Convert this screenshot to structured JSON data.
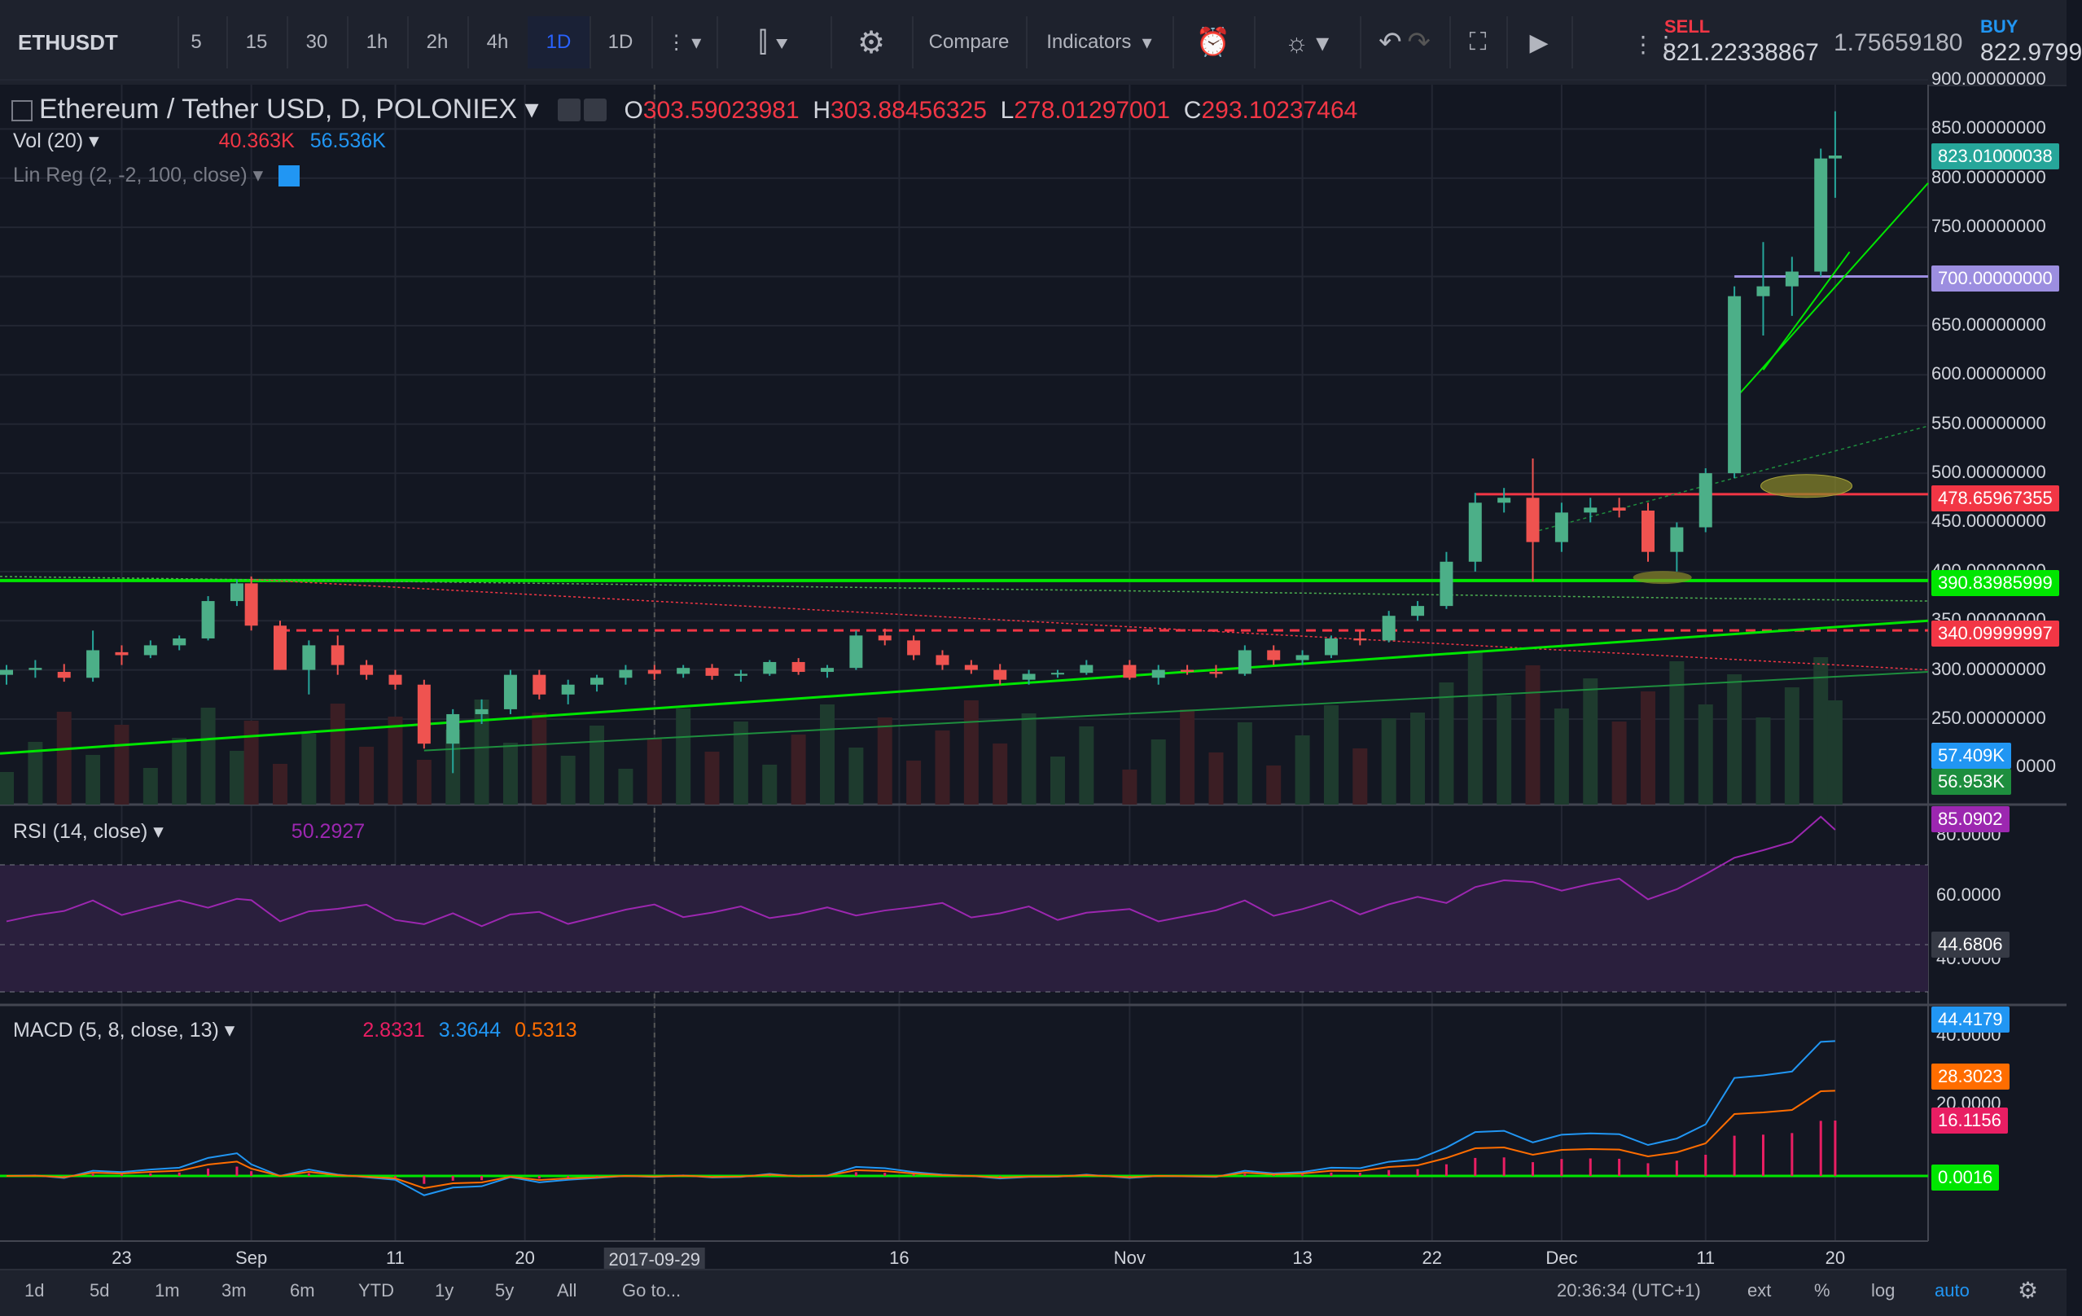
{
  "toolbar": {
    "symbol": "ETHUSDT",
    "intervals": [
      "5",
      "15",
      "30",
      "1h",
      "2h",
      "4h",
      "1D",
      "1D"
    ],
    "compare": "Compare",
    "indicators": "Indicators",
    "sell_label": "SELL",
    "sell_price": "821.22338867",
    "spread": "1.75659180",
    "buy_label": "BUY",
    "buy_price": "822.9799"
  },
  "legend": {
    "title": "Ethereum / Tether USD, D, POLONIEX",
    "o_label": "O",
    "o_value": "303.59023981",
    "h_label": "H",
    "h_value": "303.88456325",
    "l_label": "L",
    "l_value": "278.01297001",
    "c_label": "C",
    "c_value": "293.10237464",
    "vol_label": "Vol (20)",
    "vol_v1": "40.363K",
    "vol_v2": "56.536K",
    "linreg_label": "Lin Reg (2, -2, 100, close)",
    "rsi_label": "RSI (14, close)",
    "rsi_value": "50.2927",
    "macd_label": "MACD (5, 8, close, 13)",
    "macd_v1": "2.8331",
    "macd_v2": "3.3644",
    "macd_v3": "0.5313"
  },
  "price_axis": {
    "ticks": [
      "900.00000000",
      "850.00000000",
      "800.00000000",
      "750.00000000",
      "700.00000000",
      "650.00000000",
      "600.00000000",
      "550.00000000",
      "500.00000000",
      "450.00000000",
      "400.00000000",
      "350.00000000",
      "300.00000000",
      "250.00000000",
      "0000"
    ],
    "pills": [
      {
        "text": "823.01000038",
        "color": "#26a69a"
      },
      {
        "text": "700.00000000",
        "color": "#9c8ee0"
      },
      {
        "text": "478.65967355",
        "color": "#f23645"
      },
      {
        "text": "390.83985999",
        "color": "#00e600"
      },
      {
        "text": "340.09999997",
        "color": "#f23645"
      },
      {
        "text": "57.409K",
        "color": "#2196f3"
      },
      {
        "text": "56.953K",
        "color": "#1e8e3e"
      }
    ]
  },
  "rsi_axis": {
    "ticks": [
      "80.0000",
      "60.0000",
      "40.0000"
    ],
    "pills": [
      {
        "text": "85.0902",
        "color": "#9c27b0"
      },
      {
        "text": "44.6806",
        "color": "#363a45"
      }
    ]
  },
  "macd_axis": {
    "ticks": [
      "40.0000",
      "20.0000"
    ],
    "pills": [
      {
        "text": "44.4179",
        "color": "#2196f3"
      },
      {
        "text": "28.3023",
        "color": "#ff6d00"
      },
      {
        "text": "16.1156",
        "color": "#e91e63"
      },
      {
        "text": "0.0016",
        "color": "#00e600"
      }
    ]
  },
  "time_axis": {
    "labels": [
      "23",
      "Sep",
      "11",
      "20",
      "2017-09-29",
      "16",
      "Nov",
      "13",
      "22",
      "Dec",
      "11",
      "20"
    ]
  },
  "bottombar": {
    "ranges": [
      "1d",
      "5d",
      "1m",
      "3m",
      "6m",
      "YTD",
      "1y",
      "5y",
      "All",
      "Go to..."
    ],
    "clock": "20:36:34 (UTC+1)",
    "ext": "ext",
    "pct": "%",
    "log": "log",
    "auto": "auto"
  },
  "chart_data": {
    "type": "candlestick",
    "title": "Ethereum / Tether USD, D, POLONIEX",
    "x_range": [
      "2017-08-15",
      "2017-12-26"
    ],
    "ylim": [
      200,
      900
    ],
    "grid": true,
    "levels": [
      {
        "value": 700,
        "color": "#9c8ee0"
      },
      {
        "value": 478.66,
        "color": "#f23645"
      },
      {
        "value": 390.84,
        "color": "#00e600"
      },
      {
        "value": 340.1,
        "color": "#f23645",
        "style": "dashed"
      }
    ],
    "candles": [
      {
        "date": "2017-08-15",
        "open": 295,
        "high": 305,
        "low": 285,
        "close": 300
      },
      {
        "date": "2017-08-17",
        "open": 300,
        "high": 310,
        "low": 292,
        "close": 302
      },
      {
        "date": "2017-08-19",
        "open": 298,
        "high": 306,
        "low": 288,
        "close": 292
      },
      {
        "date": "2017-08-21",
        "open": 292,
        "high": 340,
        "low": 288,
        "close": 320
      },
      {
        "date": "2017-08-23",
        "open": 318,
        "high": 325,
        "low": 305,
        "close": 315
      },
      {
        "date": "2017-08-25",
        "open": 315,
        "high": 330,
        "low": 312,
        "close": 325
      },
      {
        "date": "2017-08-27",
        "open": 325,
        "high": 335,
        "low": 320,
        "close": 332
      },
      {
        "date": "2017-08-29",
        "open": 332,
        "high": 375,
        "low": 330,
        "close": 370
      },
      {
        "date": "2017-08-31",
        "open": 370,
        "high": 392,
        "low": 365,
        "close": 388
      },
      {
        "date": "2017-09-01",
        "open": 388,
        "high": 395,
        "low": 340,
        "close": 345
      },
      {
        "date": "2017-09-03",
        "open": 345,
        "high": 350,
        "low": 300,
        "close": 300
      },
      {
        "date": "2017-09-05",
        "open": 300,
        "high": 330,
        "low": 275,
        "close": 325
      },
      {
        "date": "2017-09-07",
        "open": 325,
        "high": 335,
        "low": 295,
        "close": 305
      },
      {
        "date": "2017-09-09",
        "open": 305,
        "high": 310,
        "low": 290,
        "close": 295
      },
      {
        "date": "2017-09-11",
        "open": 295,
        "high": 300,
        "low": 280,
        "close": 285
      },
      {
        "date": "2017-09-13",
        "open": 285,
        "high": 290,
        "low": 220,
        "close": 225
      },
      {
        "date": "2017-09-15",
        "open": 225,
        "high": 260,
        "low": 195,
        "close": 255
      },
      {
        "date": "2017-09-17",
        "open": 255,
        "high": 270,
        "low": 245,
        "close": 260
      },
      {
        "date": "2017-09-19",
        "open": 260,
        "high": 300,
        "low": 255,
        "close": 295
      },
      {
        "date": "2017-09-21",
        "open": 295,
        "high": 300,
        "low": 270,
        "close": 275
      },
      {
        "date": "2017-09-23",
        "open": 275,
        "high": 290,
        "low": 265,
        "close": 285
      },
      {
        "date": "2017-09-25",
        "open": 285,
        "high": 295,
        "low": 278,
        "close": 292
      },
      {
        "date": "2017-09-27",
        "open": 292,
        "high": 305,
        "low": 285,
        "close": 300
      },
      {
        "date": "2017-09-29",
        "open": 300,
        "high": 305,
        "low": 290,
        "close": 296
      },
      {
        "date": "2017-10-01",
        "open": 296,
        "high": 305,
        "low": 292,
        "close": 302
      },
      {
        "date": "2017-10-03",
        "open": 302,
        "high": 306,
        "low": 290,
        "close": 294
      },
      {
        "date": "2017-10-05",
        "open": 294,
        "high": 300,
        "low": 288,
        "close": 296
      },
      {
        "date": "2017-10-07",
        "open": 296,
        "high": 310,
        "low": 294,
        "close": 308
      },
      {
        "date": "2017-10-09",
        "open": 308,
        "high": 312,
        "low": 295,
        "close": 298
      },
      {
        "date": "2017-10-11",
        "open": 298,
        "high": 305,
        "low": 292,
        "close": 302
      },
      {
        "date": "2017-10-13",
        "open": 302,
        "high": 340,
        "low": 300,
        "close": 335
      },
      {
        "date": "2017-10-15",
        "open": 335,
        "high": 342,
        "low": 325,
        "close": 330
      },
      {
        "date": "2017-10-17",
        "open": 330,
        "high": 335,
        "low": 310,
        "close": 315
      },
      {
        "date": "2017-10-19",
        "open": 315,
        "high": 320,
        "low": 300,
        "close": 305
      },
      {
        "date": "2017-10-21",
        "open": 305,
        "high": 310,
        "low": 296,
        "close": 300
      },
      {
        "date": "2017-10-23",
        "open": 300,
        "high": 306,
        "low": 285,
        "close": 290
      },
      {
        "date": "2017-10-25",
        "open": 290,
        "high": 300,
        "low": 285,
        "close": 296
      },
      {
        "date": "2017-10-27",
        "open": 296,
        "high": 300,
        "low": 292,
        "close": 297
      },
      {
        "date": "2017-10-29",
        "open": 297,
        "high": 310,
        "low": 295,
        "close": 305
      },
      {
        "date": "2017-11-01",
        "open": 305,
        "high": 310,
        "low": 290,
        "close": 292
      },
      {
        "date": "2017-11-03",
        "open": 292,
        "high": 305,
        "low": 285,
        "close": 300
      },
      {
        "date": "2017-11-05",
        "open": 300,
        "high": 305,
        "low": 295,
        "close": 298
      },
      {
        "date": "2017-11-07",
        "open": 298,
        "high": 305,
        "low": 292,
        "close": 296
      },
      {
        "date": "2017-11-09",
        "open": 296,
        "high": 325,
        "low": 294,
        "close": 320
      },
      {
        "date": "2017-11-11",
        "open": 320,
        "high": 325,
        "low": 305,
        "close": 310
      },
      {
        "date": "2017-11-13",
        "open": 310,
        "high": 320,
        "low": 305,
        "close": 315
      },
      {
        "date": "2017-11-15",
        "open": 315,
        "high": 335,
        "low": 312,
        "close": 332
      },
      {
        "date": "2017-11-17",
        "open": 332,
        "high": 340,
        "low": 325,
        "close": 330
      },
      {
        "date": "2017-11-19",
        "open": 330,
        "high": 360,
        "low": 328,
        "close": 355
      },
      {
        "date": "2017-11-21",
        "open": 355,
        "high": 370,
        "low": 350,
        "close": 365
      },
      {
        "date": "2017-11-23",
        "open": 365,
        "high": 420,
        "low": 362,
        "close": 410
      },
      {
        "date": "2017-11-25",
        "open": 410,
        "high": 480,
        "low": 400,
        "close": 470
      },
      {
        "date": "2017-11-27",
        "open": 470,
        "high": 485,
        "low": 460,
        "close": 475
      },
      {
        "date": "2017-11-29",
        "open": 475,
        "high": 515,
        "low": 390,
        "close": 430
      },
      {
        "date": "2017-12-01",
        "open": 430,
        "high": 470,
        "low": 420,
        "close": 460
      },
      {
        "date": "2017-12-03",
        "open": 460,
        "high": 475,
        "low": 450,
        "close": 465
      },
      {
        "date": "2017-12-05",
        "open": 465,
        "high": 475,
        "low": 455,
        "close": 462
      },
      {
        "date": "2017-12-07",
        "open": 462,
        "high": 470,
        "low": 410,
        "close": 420
      },
      {
        "date": "2017-12-09",
        "open": 420,
        "high": 450,
        "low": 400,
        "close": 445
      },
      {
        "date": "2017-12-11",
        "open": 445,
        "high": 505,
        "low": 440,
        "close": 500
      },
      {
        "date": "2017-12-13",
        "open": 500,
        "high": 690,
        "low": 495,
        "close": 680
      },
      {
        "date": "2017-12-15",
        "open": 680,
        "high": 735,
        "low": 640,
        "close": 690
      },
      {
        "date": "2017-12-17",
        "open": 690,
        "high": 720,
        "low": 660,
        "close": 705
      },
      {
        "date": "2017-12-19",
        "open": 705,
        "high": 830,
        "low": 700,
        "close": 820
      },
      {
        "date": "2017-12-20",
        "open": 820,
        "high": 868,
        "low": 780,
        "close": 823
      }
    ]
  }
}
